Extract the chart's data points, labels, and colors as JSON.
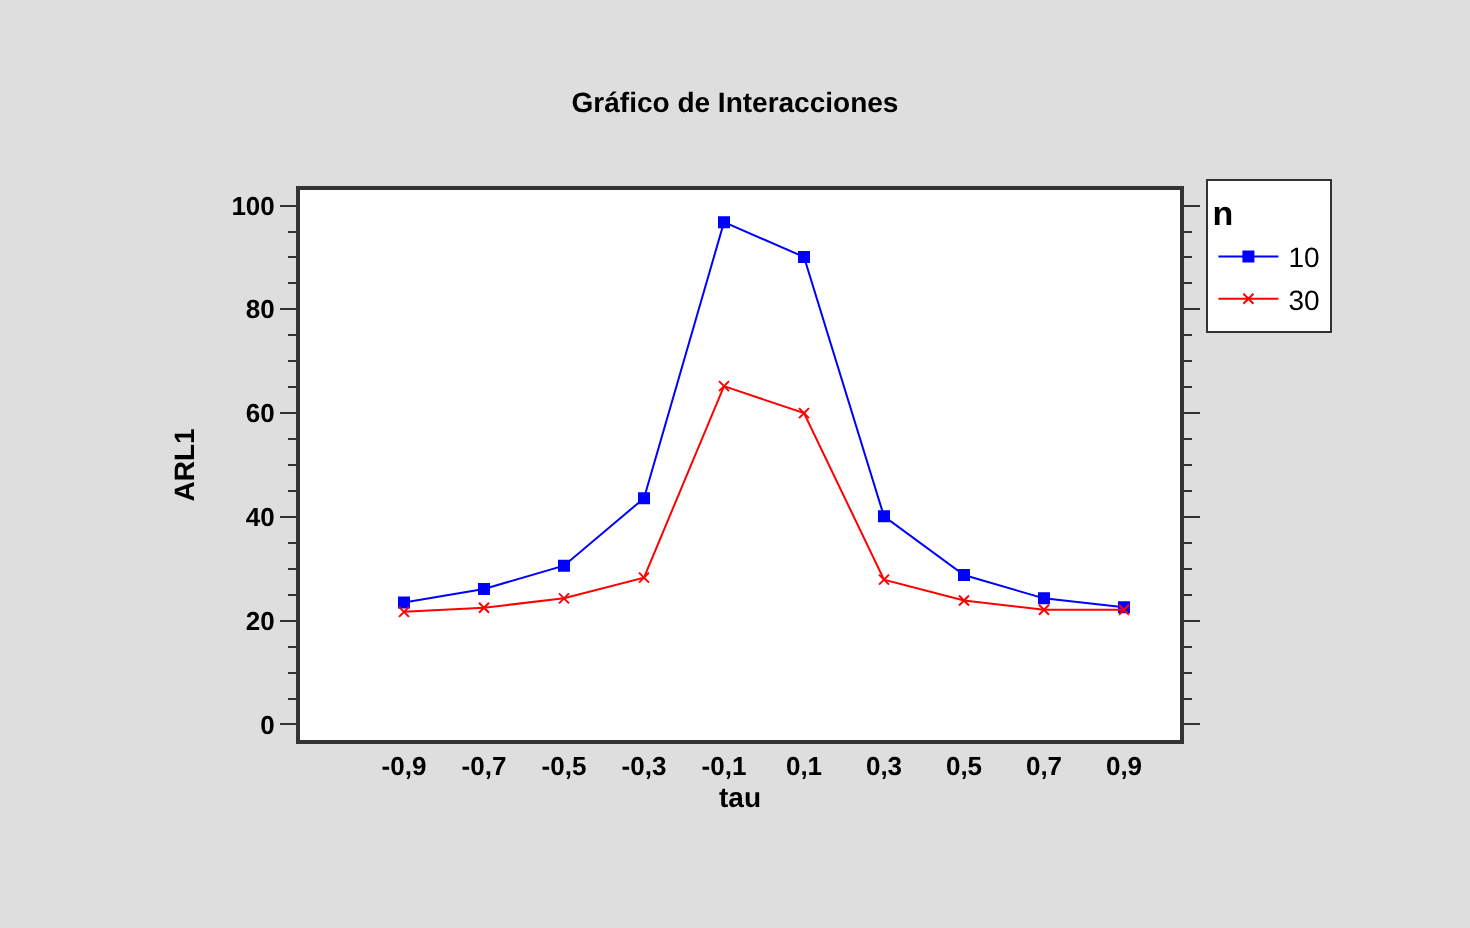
{
  "chart_data": {
    "type": "line",
    "title": "Gráfico de Interacciones",
    "xlabel": "tau",
    "ylabel": "ARL1",
    "legend_title": "n",
    "categories": [
      "-0,9",
      "-0,7",
      "-0,5",
      "-0,3",
      "-0,1",
      "0,1",
      "0,3",
      "0,5",
      "0,7",
      "0,9"
    ],
    "series": [
      {
        "name": "10",
        "color": "#0000ff",
        "marker": "square",
        "values": [
          23.5,
          26.1,
          30.6,
          43.6,
          96.8,
          90.1,
          40.1,
          28.8,
          24.3,
          22.6
        ]
      },
      {
        "name": "30",
        "color": "#ff0000",
        "marker": "cross",
        "values": [
          21.7,
          22.5,
          24.3,
          28.3,
          65.2,
          60.0,
          27.9,
          23.9,
          22.1,
          22.1
        ]
      }
    ],
    "ylim": [
      -3,
      103
    ],
    "yticks": [
      0,
      {
        "value": 5,
        "label": null
      },
      {
        "value": 10,
        "label": null
      },
      {
        "value": 15,
        "label": null
      },
      20,
      {
        "value": 25,
        "label": null
      },
      {
        "value": 30,
        "label": null
      },
      {
        "value": 35,
        "label": null
      },
      40,
      {
        "value": 45,
        "label": null
      },
      {
        "value": 50,
        "label": null
      },
      {
        "value": 55,
        "label": null
      },
      60,
      {
        "value": 65,
        "label": null
      },
      {
        "value": 70,
        "label": null
      },
      {
        "value": 75,
        "label": null
      },
      80,
      {
        "value": 85,
        "label": null
      },
      {
        "value": 90,
        "label": null
      },
      {
        "value": 95,
        "label": null
      },
      100
    ],
    "legend": "top right",
    "line_style": "solid"
  }
}
